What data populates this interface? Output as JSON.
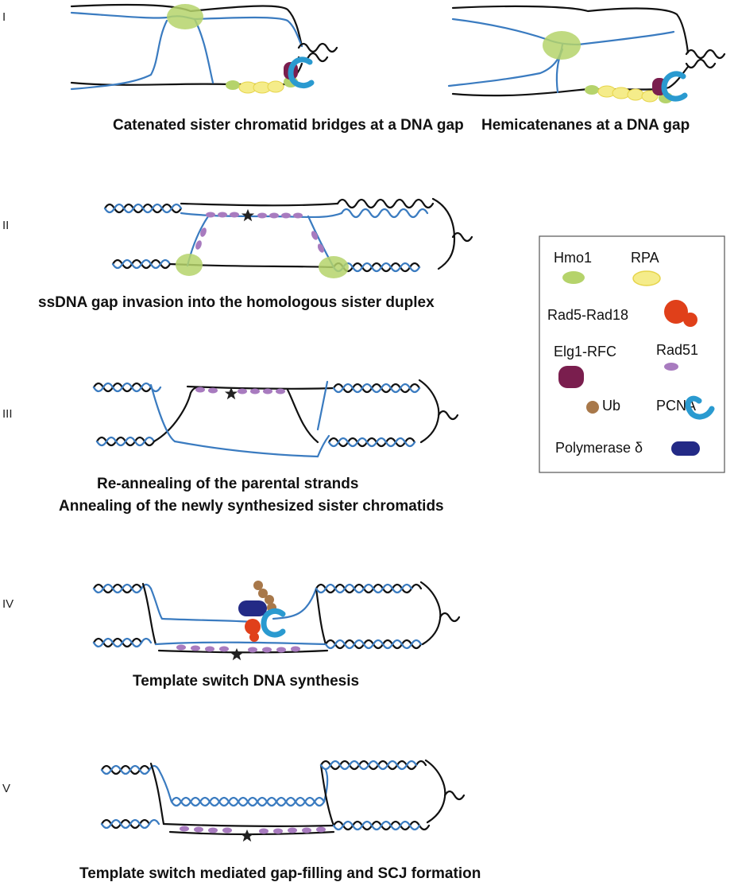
{
  "stages": [
    {
      "numeral": "I",
      "captions": [
        "Catenated sister chromatid bridges at a DNA gap",
        "Hemicatenanes at a DNA gap"
      ]
    },
    {
      "numeral": "II",
      "captions": [
        "ssDNA gap invasion into the homologous sister duplex"
      ]
    },
    {
      "numeral": "III",
      "captions": [
        "Re-annealing of the parental strands",
        "Annealing of the newly synthesized sister chromatids"
      ]
    },
    {
      "numeral": "IV",
      "captions": [
        "Template switch DNA synthesis"
      ]
    },
    {
      "numeral": "V",
      "captions": [
        "Template switch mediated gap-filling and SCJ formation"
      ]
    }
  ],
  "legend": {
    "items": [
      {
        "label": "Hmo1",
        "color": "#b5d36b"
      },
      {
        "label": "RPA",
        "color": "#f5ec8a"
      },
      {
        "label": "Rad5-Rad18",
        "color": "#e0401a"
      },
      {
        "label": "Elg1-RFC",
        "color": "#7a1e4e"
      },
      {
        "label": "Rad51",
        "color": "#a87bbf"
      },
      {
        "label": "Ub",
        "color": "#a8784a"
      },
      {
        "label": "PCNA",
        "color": "#2a9ad0"
      },
      {
        "label": "Polymerase δ",
        "color": "#232a86"
      }
    ]
  },
  "colors": {
    "parental_strand": "#111111",
    "new_strand": "#3a7bc0",
    "star": "#222222"
  }
}
